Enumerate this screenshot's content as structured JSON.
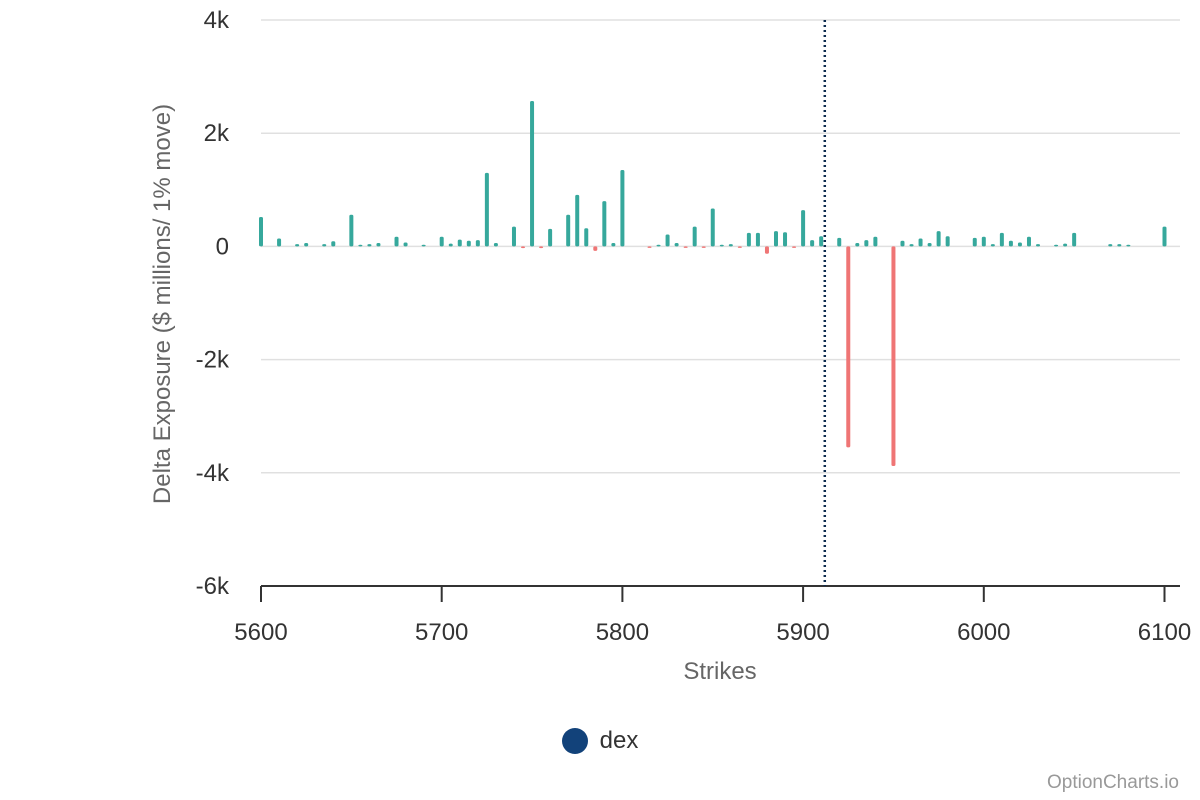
{
  "chart_data": {
    "type": "bar",
    "title": "",
    "xlabel": "Strikes",
    "ylabel": "Delta Exposure ($ millions/ 1% move)",
    "xlim": [
      5600,
      6110
    ],
    "ylim": [
      -6000,
      4000
    ],
    "yticks": [
      4000,
      2000,
      0,
      -2000,
      -4000,
      -6000
    ],
    "ytick_labels": [
      "4k",
      "2k",
      "0",
      "-2k",
      "-4k",
      "-6k"
    ],
    "xticks": [
      5600,
      5700,
      5800,
      5900,
      6000,
      6100
    ],
    "xtick_labels": [
      "5600",
      "5700",
      "5800",
      "5900",
      "6000",
      "6100"
    ],
    "spot_line": 5912,
    "grid": true,
    "legend_position": "bottom-center",
    "series": [
      {
        "name": "dex",
        "legend_color": "#12427a",
        "positive_color": "#36a89c",
        "negative_color": "#ef7575",
        "x": [
          5600,
          5610,
          5620,
          5625,
          5635,
          5640,
          5650,
          5655,
          5660,
          5665,
          5675,
          5680,
          5690,
          5700,
          5705,
          5710,
          5715,
          5720,
          5725,
          5730,
          5740,
          5745,
          5750,
          5755,
          5760,
          5770,
          5775,
          5780,
          5785,
          5790,
          5795,
          5800,
          5815,
          5820,
          5825,
          5830,
          5835,
          5840,
          5845,
          5850,
          5855,
          5860,
          5865,
          5870,
          5875,
          5880,
          5885,
          5890,
          5895,
          5900,
          5905,
          5910,
          5920,
          5925,
          5930,
          5935,
          5940,
          5950,
          5955,
          5960,
          5965,
          5970,
          5975,
          5980,
          5995,
          6000,
          6005,
          6010,
          6015,
          6020,
          6025,
          6030,
          6040,
          6045,
          6050,
          6070,
          6075,
          6080,
          6100
        ],
        "values": [
          520,
          140,
          40,
          60,
          40,
          90,
          560,
          30,
          40,
          60,
          170,
          70,
          30,
          170,
          50,
          120,
          100,
          110,
          1300,
          60,
          350,
          -30,
          2570,
          -30,
          310,
          560,
          910,
          320,
          -80,
          800,
          60,
          1350,
          -20,
          30,
          210,
          60,
          -20,
          350,
          -20,
          670,
          30,
          40,
          -20,
          240,
          240,
          -130,
          270,
          250,
          -20,
          640,
          110,
          180,
          150,
          -3550,
          60,
          110,
          170,
          -3880,
          100,
          40,
          140,
          60,
          270,
          180,
          150,
          170,
          40,
          240,
          100,
          70,
          170,
          40,
          30,
          50,
          240,
          40,
          40,
          30,
          350
        ]
      }
    ]
  },
  "legend": {
    "label": "dex",
    "color": "#12427a"
  },
  "credits": "OptionCharts.io"
}
